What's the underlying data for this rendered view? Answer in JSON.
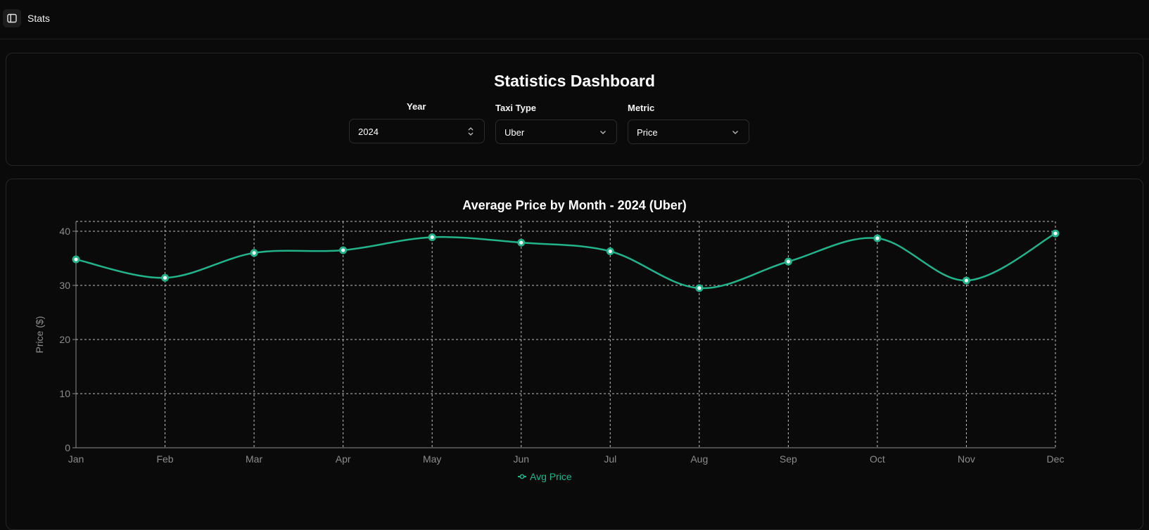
{
  "topbar": {
    "title": "Stats",
    "toggle_icon": "sidebar-panel-icon"
  },
  "dashboard": {
    "title": "Statistics Dashboard",
    "filters": {
      "year": {
        "label": "Year",
        "value": "2024",
        "icon": "chevron-up-down-icon"
      },
      "taxi_type": {
        "label": "Taxi Type",
        "value": "Uber",
        "icon": "chevron-down-icon"
      },
      "metric": {
        "label": "Metric",
        "value": "Price",
        "icon": "chevron-down-icon"
      }
    }
  },
  "colors": {
    "accent": "#22b38a",
    "background": "#0a0a0a",
    "border": "#262626",
    "grid": "#bdbdbd"
  },
  "chart_data": {
    "type": "line",
    "title": "Average Price by Month - 2024 (Uber)",
    "xlabel": "",
    "ylabel": "Price ($)",
    "categories": [
      "Jan",
      "Feb",
      "Mar",
      "Apr",
      "May",
      "Jun",
      "Jul",
      "Aug",
      "Sep",
      "Oct",
      "Nov",
      "Dec"
    ],
    "series": [
      {
        "name": "Avg Price",
        "values": [
          34.8,
          31.4,
          36.0,
          36.5,
          38.9,
          37.9,
          36.3,
          29.5,
          34.4,
          38.7,
          30.9,
          39.6
        ]
      }
    ],
    "yticks": [
      0,
      10,
      20,
      30,
      40
    ],
    "ylim": [
      0,
      40
    ],
    "grid": true,
    "legend": "bottom-center"
  }
}
